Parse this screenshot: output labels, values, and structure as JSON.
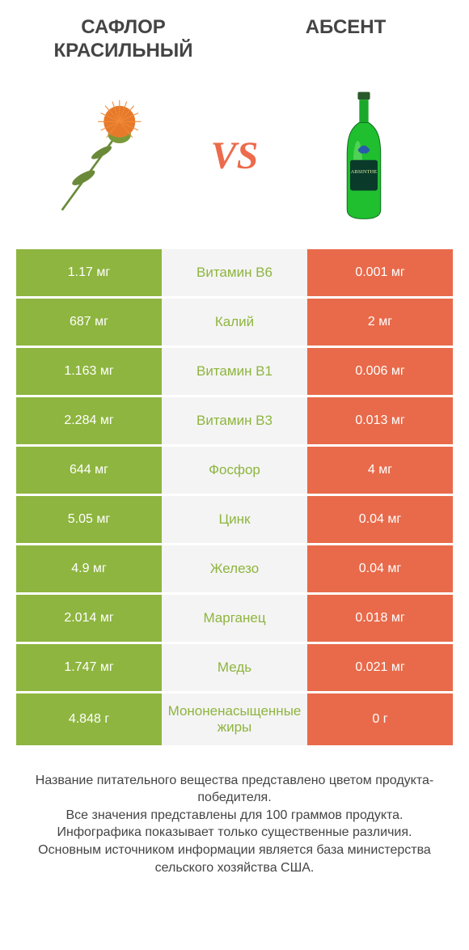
{
  "header": {
    "left_title": "САФЛОР КРАСИЛЬНЫЙ",
    "right_title": "АБСЕНТ",
    "vs_label": "VS"
  },
  "colors": {
    "left_bg": "#8eb53f",
    "mid_bg": "#f4f4f4",
    "mid_text": "#8eb53f",
    "right_bg": "#e86a4a",
    "cell_text": "#ffffff",
    "vs_color": "#ec6b4c"
  },
  "rows": [
    {
      "left": "1.17 мг",
      "mid": "Витамин B6",
      "right": "0.001 мг"
    },
    {
      "left": "687 мг",
      "mid": "Калий",
      "right": "2 мг"
    },
    {
      "left": "1.163 мг",
      "mid": "Витамин B1",
      "right": "0.006 мг"
    },
    {
      "left": "2.284 мг",
      "mid": "Витамин B3",
      "right": "0.013 мг"
    },
    {
      "left": "644 мг",
      "mid": "Фосфор",
      "right": "4 мг"
    },
    {
      "left": "5.05 мг",
      "mid": "Цинк",
      "right": "0.04 мг"
    },
    {
      "left": "4.9 мг",
      "mid": "Железо",
      "right": "0.04 мг"
    },
    {
      "left": "2.014 мг",
      "mid": "Марганец",
      "right": "0.018 мг"
    },
    {
      "left": "1.747 мг",
      "mid": "Медь",
      "right": "0.021 мг"
    },
    {
      "left": "4.848 г",
      "mid": "Мононенасыщенные жиры",
      "right": "0 г"
    }
  ],
  "footer": {
    "line1": "Название питательного вещества представлено цветом продукта-победителя.",
    "line2": "Все значения представлены для 100 граммов продукта.",
    "line3": "Инфографика показывает только существенные различия.",
    "line4": "Основным источником информации является база министерства сельского хозяйства США."
  },
  "illustrations": {
    "left": "safflower-flower",
    "right": "absinthe-bottle"
  }
}
